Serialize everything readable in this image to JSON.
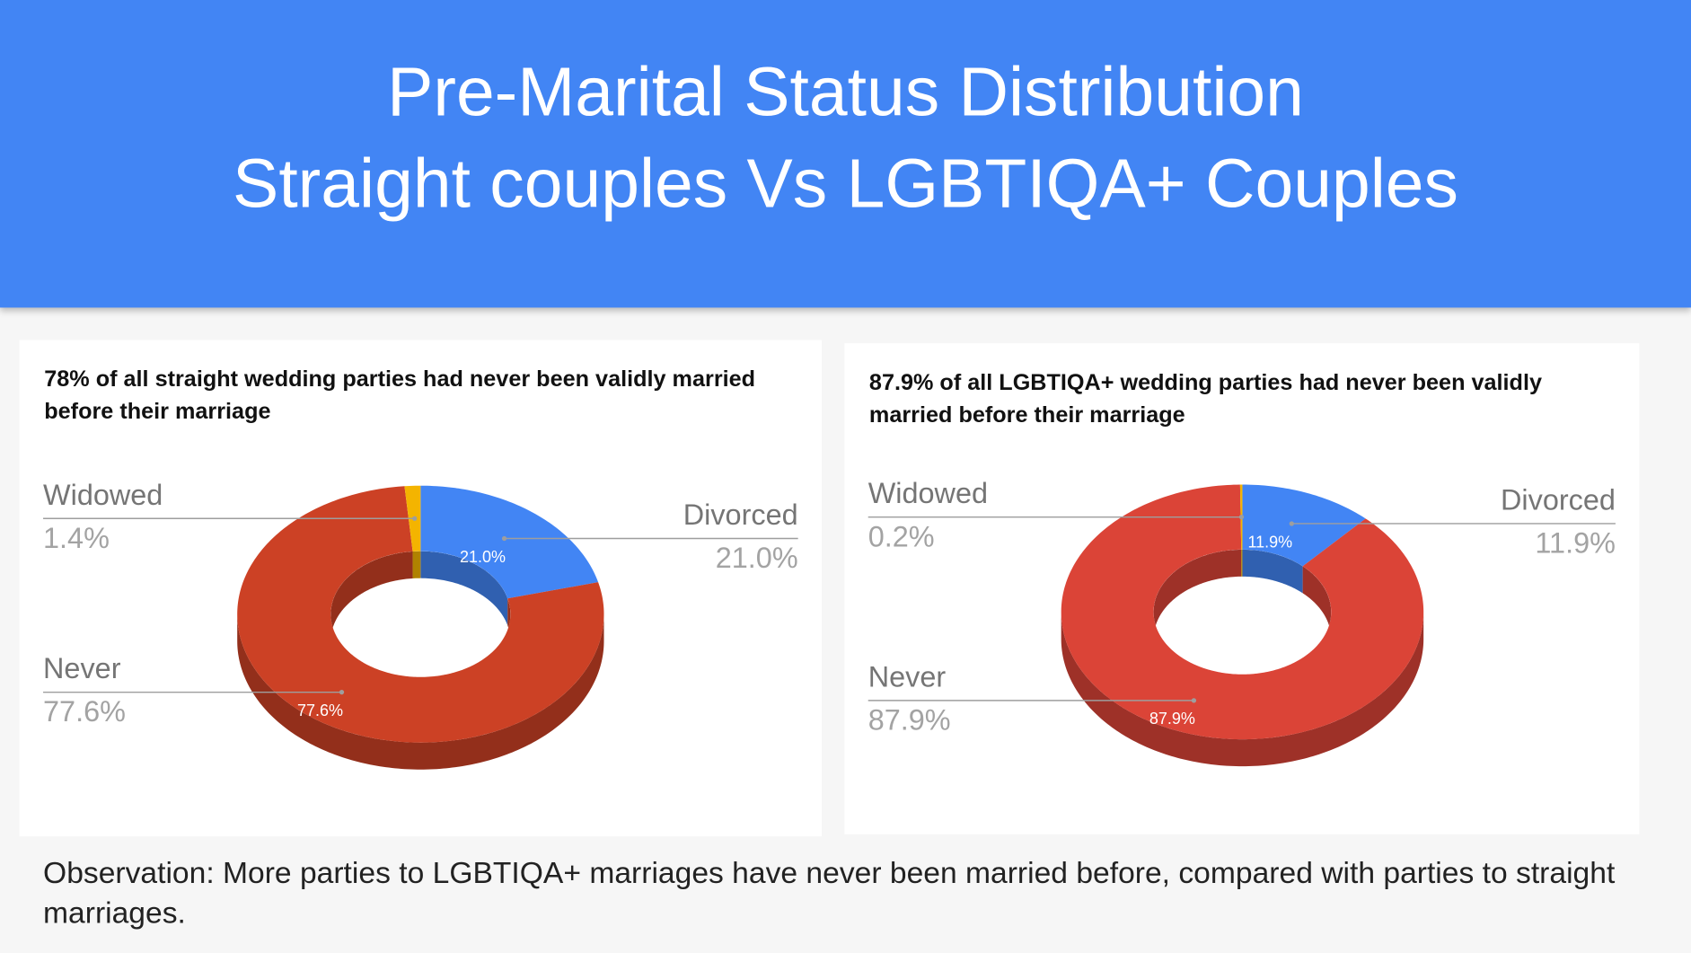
{
  "header": {
    "title_lines": [
      "Pre-Marital Status Distribution",
      "Straight couples Vs LGBTIQA+ Couples"
    ]
  },
  "chart_data": [
    {
      "type": "pie",
      "donut": true,
      "three_d": true,
      "title": "78% of all straight wedding parties had never been validly married before their marriage",
      "categories": [
        "Divorced",
        "Never",
        "Widowed"
      ],
      "values": [
        21.0,
        77.6,
        1.4
      ],
      "value_labels": [
        "21.0%",
        "77.6%",
        "1.4%"
      ],
      "colors": [
        "#4285f4",
        "#cc4125",
        "#f4b400"
      ]
    },
    {
      "type": "pie",
      "donut": true,
      "three_d": true,
      "title": "87.9% of all LGBTIQA+ wedding parties had never been validly married before their marriage",
      "categories": [
        "Divorced",
        "Never",
        "Widowed"
      ],
      "values": [
        11.9,
        87.9,
        0.2
      ],
      "value_labels": [
        "11.9%",
        "87.9%",
        "0.2%"
      ],
      "colors": [
        "#4285f4",
        "#db4437",
        "#f4b400"
      ]
    }
  ],
  "observation": "Observation: More parties to LGBTIQA+ marriages have never been married before, compared with parties to straight marriages."
}
